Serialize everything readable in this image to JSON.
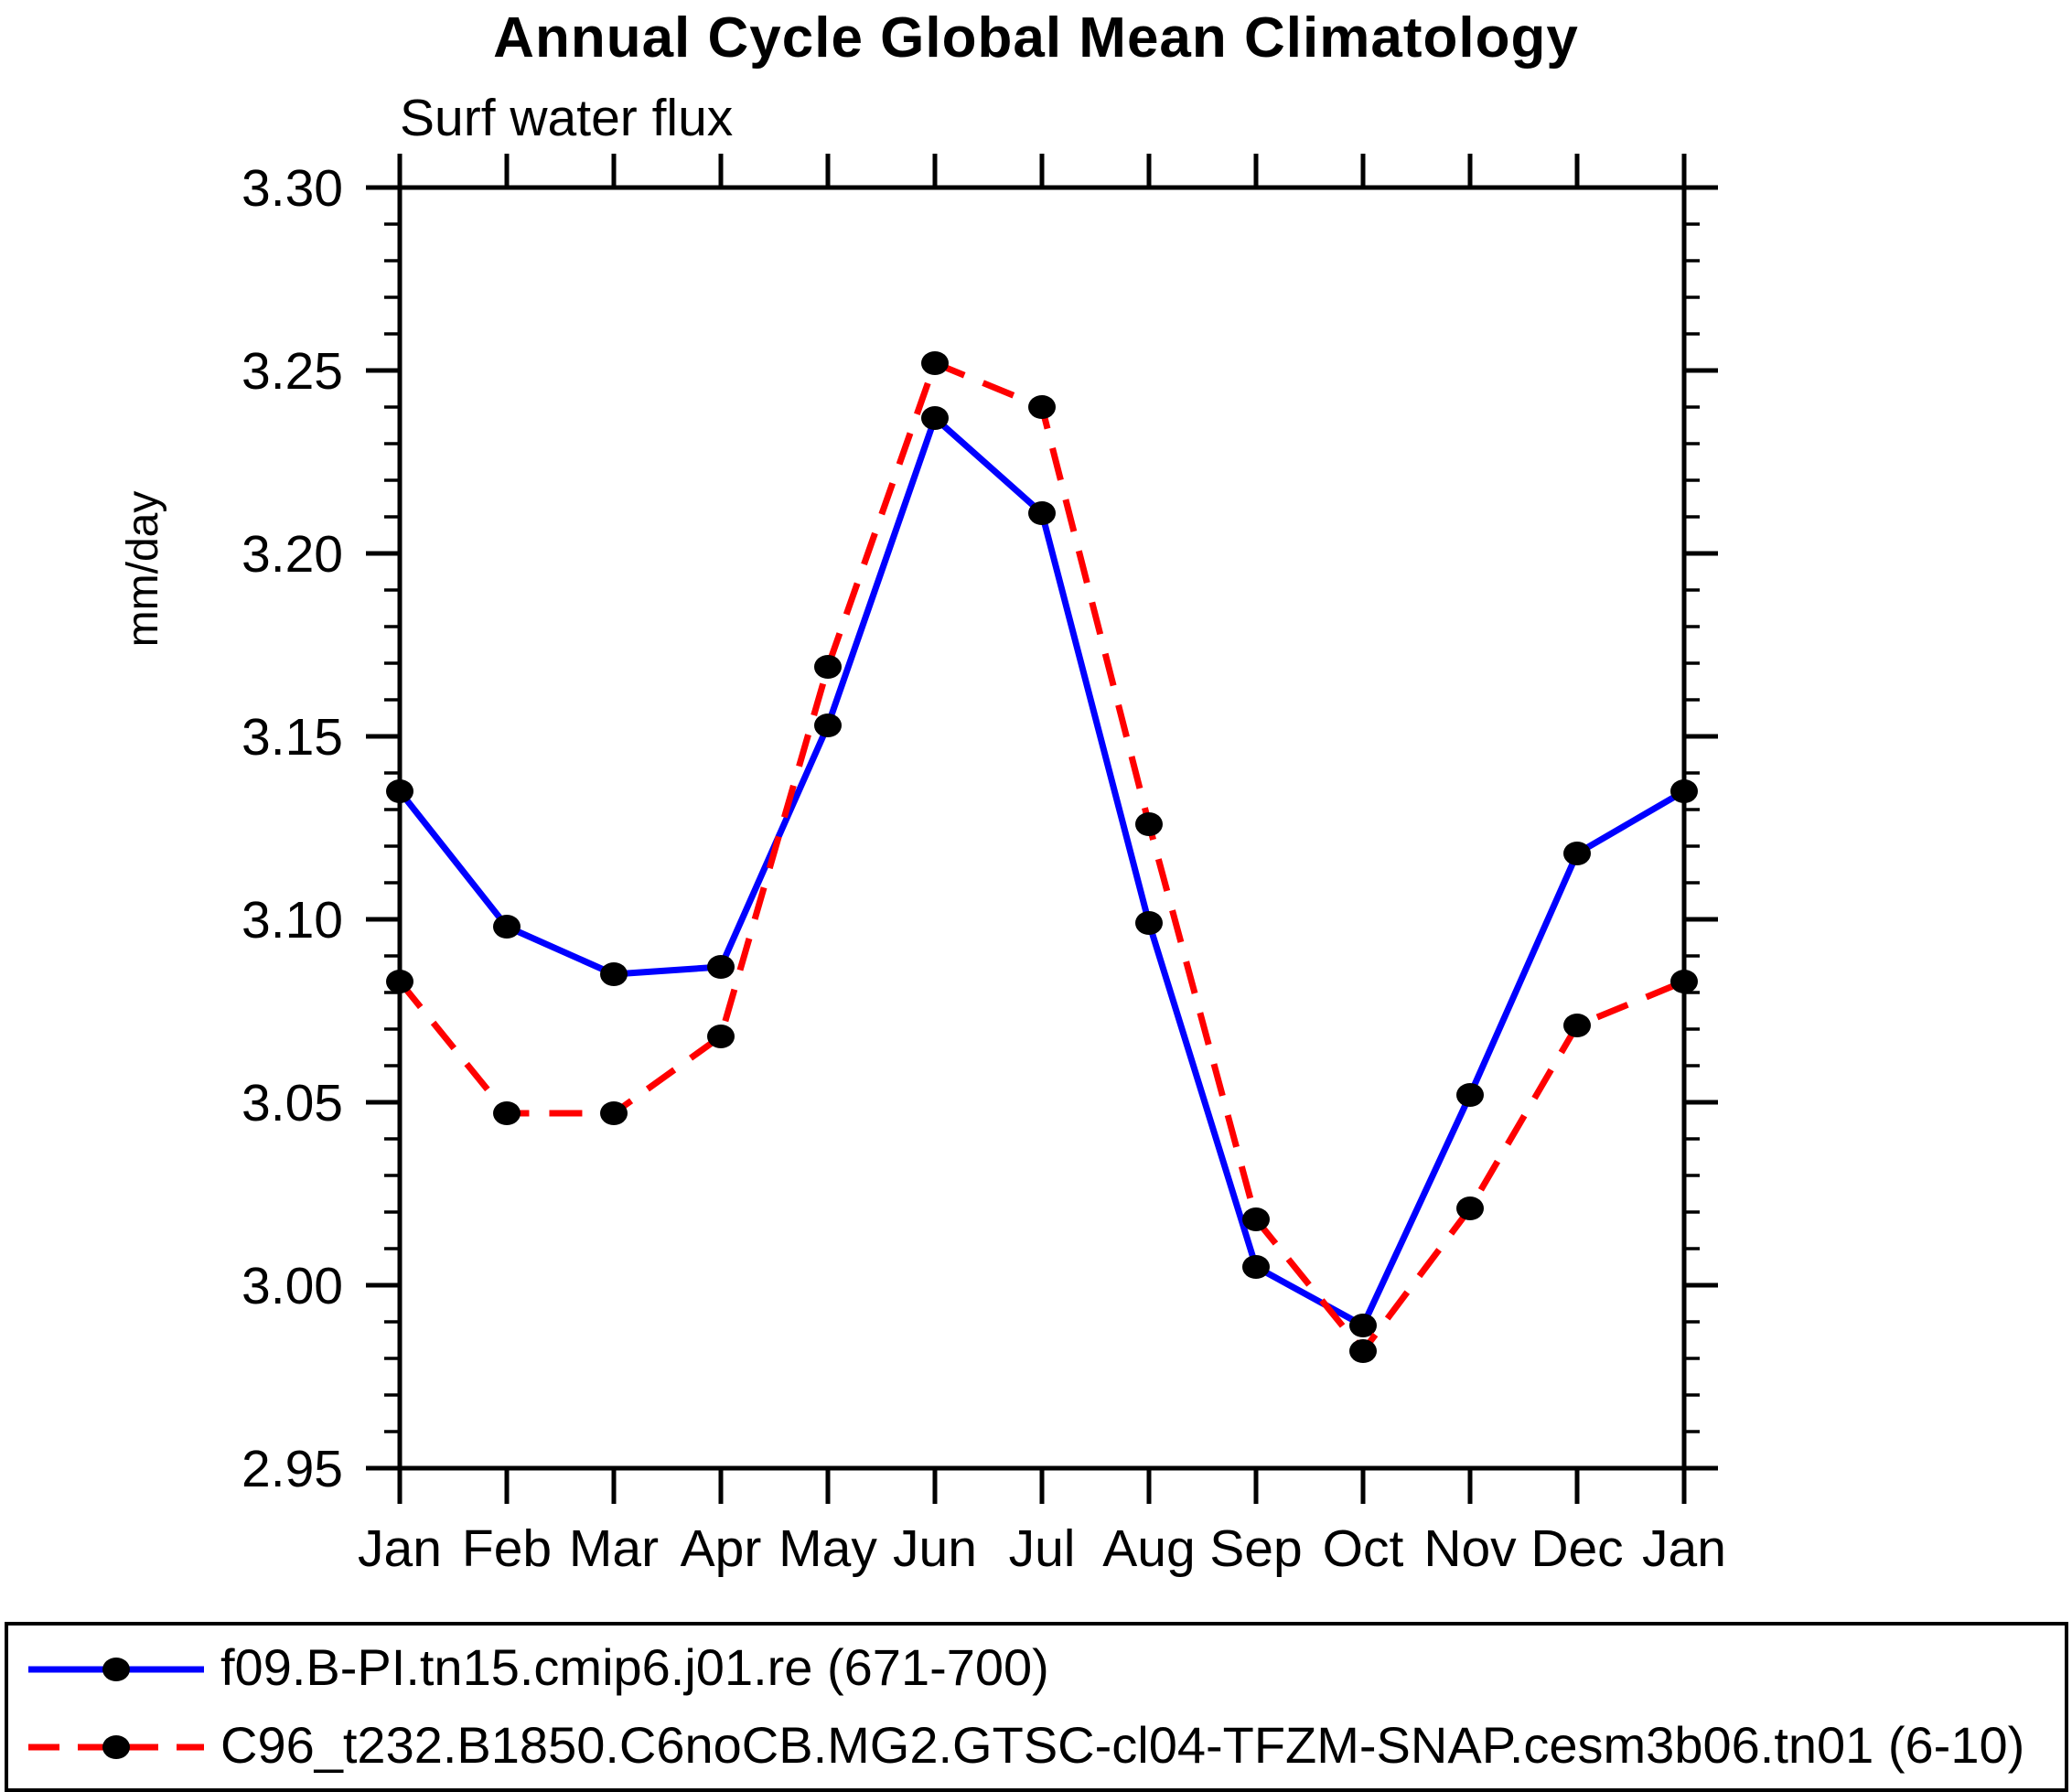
{
  "title": "Annual Cycle Global Mean Climatology",
  "subtitle": "Surf water flux",
  "ylabel": "mm/day",
  "colors": {
    "series1": "#0000ff",
    "series2": "#ff0000",
    "marker": "#000000",
    "axis": "#000000",
    "background": "#ffffff"
  },
  "chart_data": {
    "type": "line",
    "title": "Annual Cycle Global Mean Climatology",
    "subtitle": "Surf water flux",
    "xlabel": "",
    "ylabel": "mm/day",
    "categories": [
      "Jan",
      "Feb",
      "Mar",
      "Apr",
      "May",
      "Jun",
      "Jul",
      "Aug",
      "Sep",
      "Oct",
      "Nov",
      "Dec",
      "Jan"
    ],
    "ylim": [
      2.95,
      3.3
    ],
    "ytick_labels": [
      "2.95",
      "3.00",
      "3.05",
      "3.10",
      "3.15",
      "3.20",
      "3.25",
      "3.30"
    ],
    "ytick_values": [
      2.95,
      3.0,
      3.05,
      3.1,
      3.15,
      3.2,
      3.25,
      3.3
    ],
    "yminor_step": 0.01,
    "grid": false,
    "legend_position": "bottom",
    "series": [
      {
        "name": "f09.B-PI.tn15.cmip6.j01.re (671-700)",
        "color": "#0000ff",
        "line_style": "solid",
        "marker": "filled-circle",
        "values": [
          3.135,
          3.098,
          3.085,
          3.087,
          3.153,
          3.237,
          3.211,
          3.099,
          3.005,
          2.989,
          3.052,
          3.118,
          3.135
        ]
      },
      {
        "name": "C96_t232.B1850.C6noCB.MG2.GTSC-cl04-TFZM-SNAP.cesm3b06.tn01 (6-10)",
        "color": "#ff0000",
        "line_style": "dashed",
        "marker": "filled-circle",
        "values": [
          3.083,
          3.047,
          3.047,
          3.068,
          3.169,
          3.252,
          3.24,
          3.126,
          3.018,
          2.982,
          3.021,
          3.071,
          3.083
        ]
      }
    ]
  },
  "legend": {
    "items": [
      {
        "label": "f09.B-PI.tn15.cmip6.j01.re (671-700)"
      },
      {
        "label": "C96_t232.B1850.C6noCB.MG2.GTSC-cl04-TFZM-SNAP.cesm3b06.tn01 (6-10)"
      }
    ]
  }
}
